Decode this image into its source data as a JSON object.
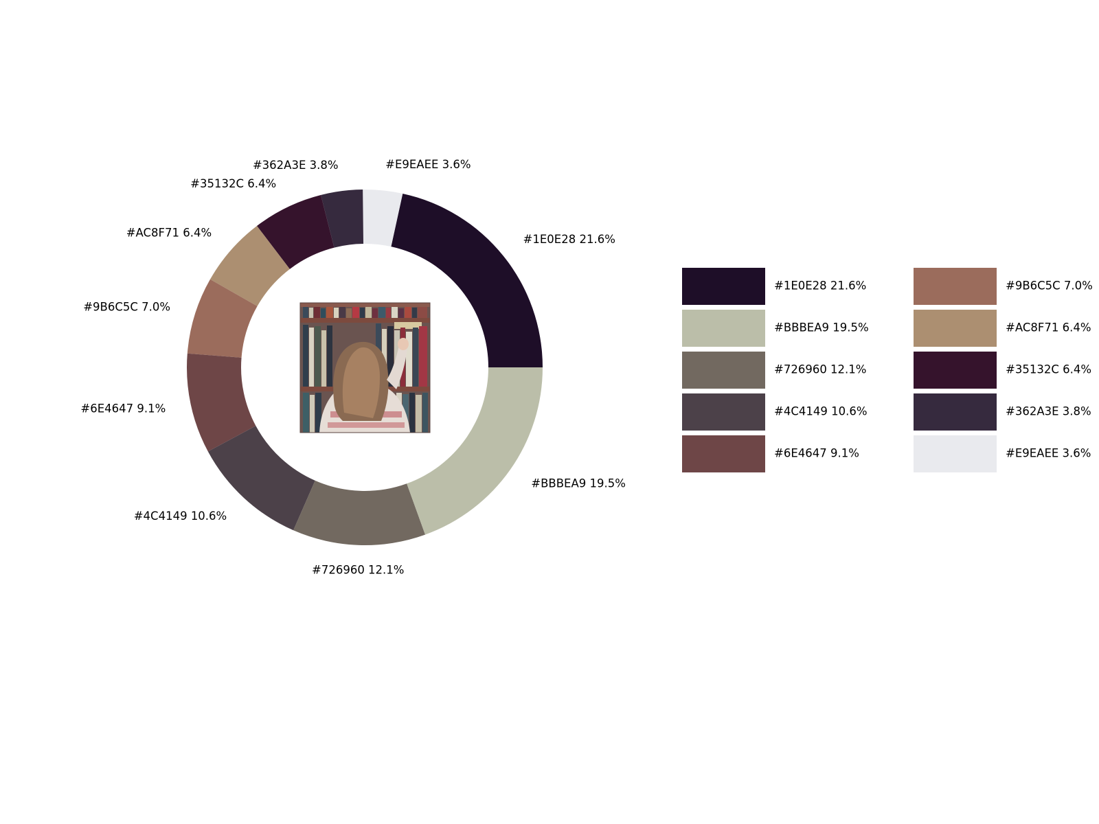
{
  "chart_data": {
    "type": "pie",
    "style": "donut",
    "title": "",
    "center_image": "photo-woman-reaching-for-book-on-bookshelf",
    "slices": [
      {
        "label": "#1E0E28 21.6%",
        "color": "#1E0E28",
        "value": 21.6
      },
      {
        "label": "#E9EAEE 3.6%",
        "color": "#E9EAEE",
        "value": 3.6
      },
      {
        "label": "#362A3E 3.8%",
        "color": "#362A3E",
        "value": 3.8
      },
      {
        "label": "#35132C 6.4%",
        "color": "#35132C",
        "value": 6.4
      },
      {
        "label": "#AC8F71 6.4%",
        "color": "#AC8F71",
        "value": 6.4
      },
      {
        "label": "#9B6C5C 7.0%",
        "color": "#9B6C5C",
        "value": 7.0
      },
      {
        "label": "#6E4647 9.1%",
        "color": "#6E4647",
        "value": 9.1
      },
      {
        "label": "#4C4149 10.6%",
        "color": "#4C4149",
        "value": 10.6
      },
      {
        "label": "#726960 12.1%",
        "color": "#726960",
        "value": 12.1
      },
      {
        "label": "#BBBEA9 19.5%",
        "color": "#BBBEA9",
        "value": 19.5
      }
    ],
    "legend": {
      "placement": "right",
      "columns": 2,
      "entries": [
        {
          "label": "#1E0E28 21.6%",
          "color": "#1E0E28"
        },
        {
          "label": "#BBBEA9 19.5%",
          "color": "#BBBEA9"
        },
        {
          "label": "#726960 12.1%",
          "color": "#726960"
        },
        {
          "label": "#4C4149 10.6%",
          "color": "#4C4149"
        },
        {
          "label": "#6E4647 9.1%",
          "color": "#6E4647"
        },
        {
          "label": "#9B6C5C 7.0%",
          "color": "#9B6C5C"
        },
        {
          "label": "#AC8F71 6.4%",
          "color": "#AC8F71"
        },
        {
          "label": "#35132C 6.4%",
          "color": "#35132C"
        },
        {
          "label": "#362A3E 3.8%",
          "color": "#362A3E"
        },
        {
          "label": "#E9EAEE 3.6%",
          "color": "#E9EAEE"
        }
      ]
    }
  }
}
